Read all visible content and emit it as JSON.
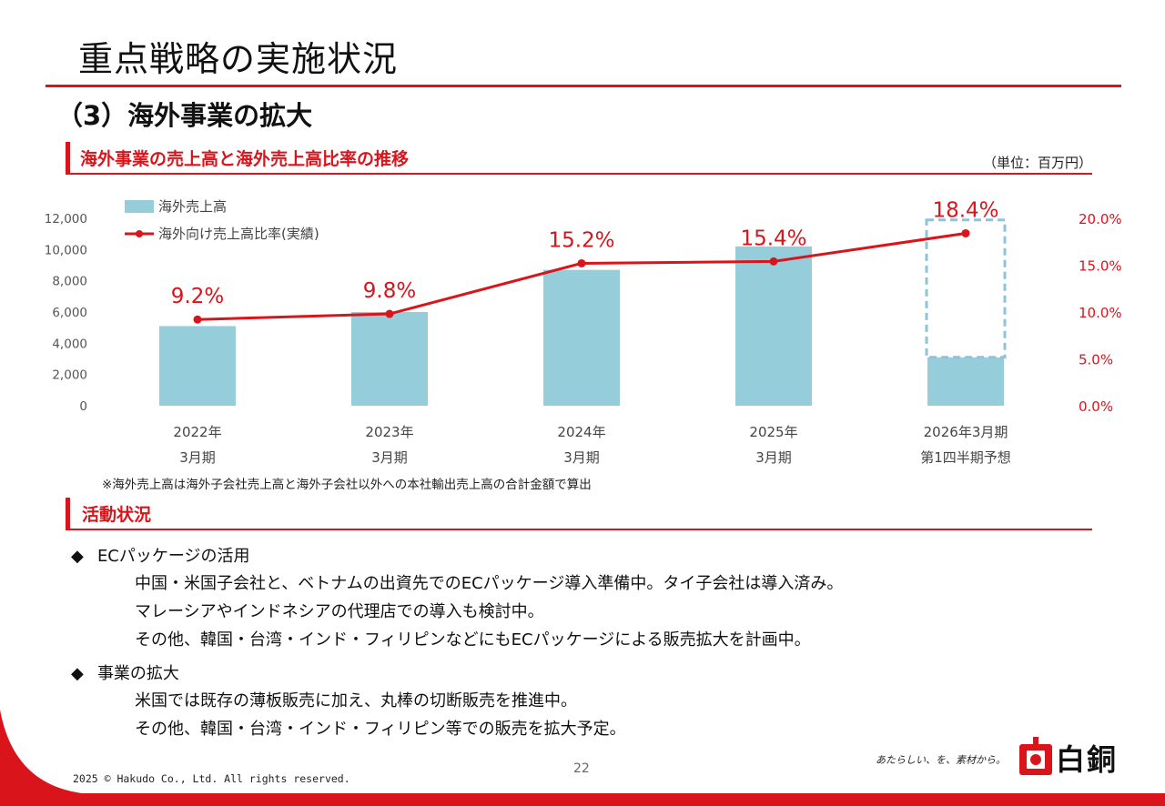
{
  "page_title": "重点戦略の実施状況",
  "section_title": "（3）海外事業の拡大",
  "chart_section": {
    "title": "海外事業の売上高と海外売上高比率の推移",
    "unit": "（単位：百万円）",
    "footnote": "※海外売上高は海外子会社売上高と海外子会社以外への本社輸出売上高の合計金額で算出"
  },
  "chart_data": {
    "type": "bar",
    "categories": [
      [
        "2022年",
        "3月期"
      ],
      [
        "2023年",
        "3月期"
      ],
      [
        "2024年",
        "3月期"
      ],
      [
        "2025年",
        "3月期"
      ],
      [
        "2026年3月期",
        "第1四半期予想"
      ]
    ],
    "series": [
      {
        "name": "海外売上高",
        "type": "bar",
        "values": [
          5100,
          6000,
          8700,
          10200,
          3100
        ],
        "color": "#96cddb",
        "forecast_outline_value": 11900,
        "forecast_outline_color": "#8ec3dc"
      },
      {
        "name": "海外向け売上高比率(実績)",
        "type": "line",
        "values": [
          9.2,
          9.8,
          15.2,
          15.4,
          18.4
        ],
        "labels": [
          "9.2%",
          "9.8%",
          "15.2%",
          "15.4%",
          "18.4%"
        ],
        "color": "#d9141b"
      }
    ],
    "y_left": {
      "ticks": [
        "0",
        "2,000",
        "4,000",
        "6,000",
        "8,000",
        "10,000",
        "12,000"
      ],
      "min": 0,
      "max": 12000
    },
    "y_right": {
      "ticks": [
        "0.0%",
        "5.0%",
        "10.0%",
        "15.0%",
        "20.0%"
      ],
      "min": 0,
      "max": 20
    },
    "legend_position": "top-left",
    "grid": false
  },
  "activity": {
    "title": "活動状況",
    "bullets": [
      {
        "marker": "◆",
        "heading": "ECパッケージの活用",
        "lines": [
          "中国・米国子会社と、ベトナムの出資先でのECパッケージ導入準備中。タイ子会社は導入済み。",
          "マレーシアやインドネシアの代理店での導入も検討中。",
          "その他、韓国・台湾・インド・フィリピンなどにもECパッケージによる販売拡大を計画中。"
        ]
      },
      {
        "marker": "◆",
        "heading": "事業の拡大",
        "lines": [
          "米国では既存の薄板販売に加え、丸棒の切断販売を推進中。",
          "その他、韓国・台湾・インド・フィリピン等での販売を拡大予定。"
        ]
      }
    ]
  },
  "footer": {
    "page_number": "22",
    "copyright": "2025 © Hakudo Co., Ltd. All rights reserved.",
    "tagline": "あたらしい、を、素材から。",
    "logo_text": "白銅",
    "accent_color": "#d9141b"
  }
}
